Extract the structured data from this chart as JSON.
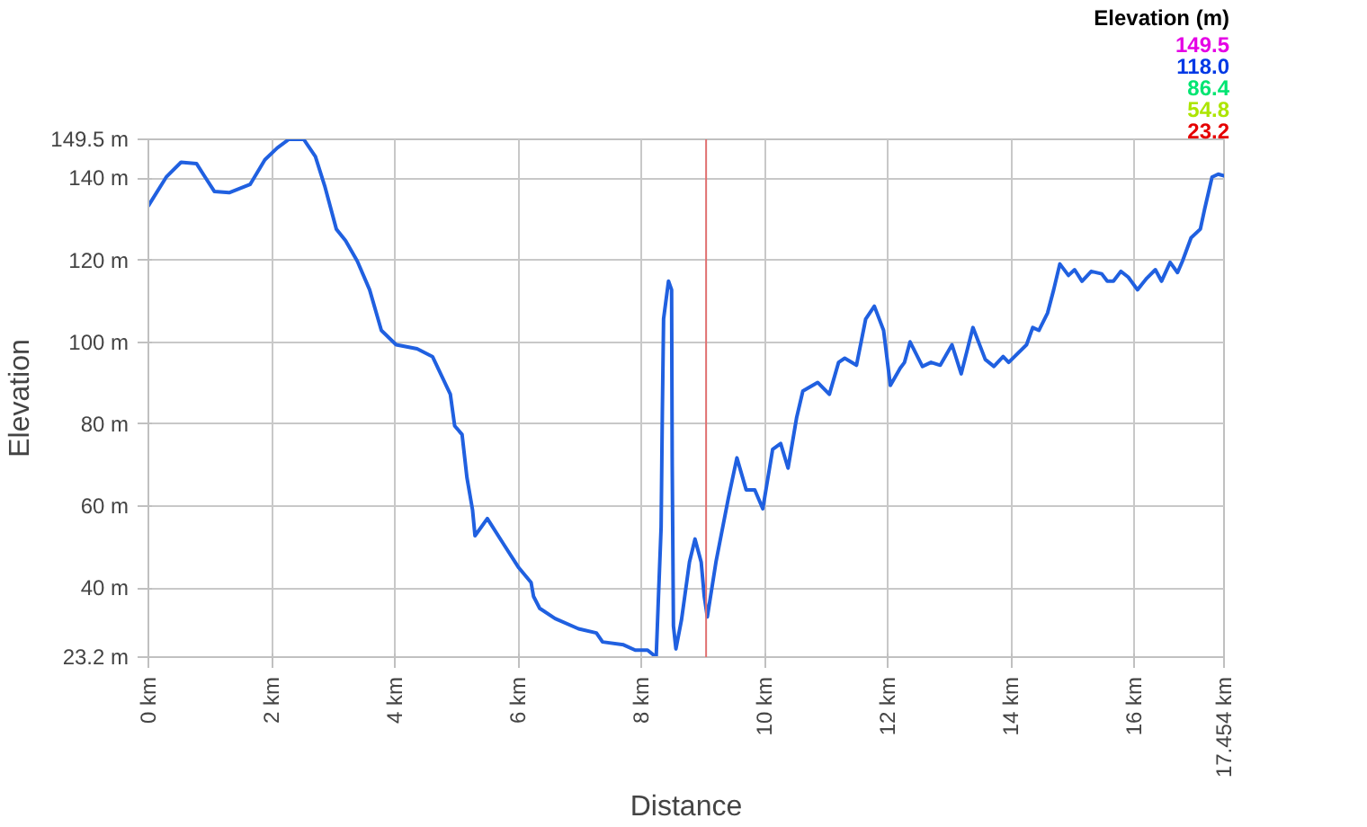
{
  "chart_data": {
    "type": "line",
    "xlabel": "Distance",
    "ylabel": "Elevation",
    "legend_title": "Elevation (m)",
    "annotations": [
      "149.5",
      "118.0",
      "86.4",
      "54.8",
      "23.2"
    ],
    "x": [
      0,
      0.29,
      0.53,
      0.78,
      0.92,
      1.07,
      1.31,
      1.65,
      1.89,
      2.09,
      2.28,
      2.52,
      2.71,
      2.86,
      3.05,
      3.2,
      3.39,
      3.59,
      3.78,
      4.02,
      4.36,
      4.61,
      4.9,
      4.97,
      5.09,
      5.17,
      5.26,
      5.3,
      5.5,
      5.77,
      6.01,
      6.21,
      6.25,
      6.35,
      6.6,
      6.98,
      7.27,
      7.37,
      7.71,
      7.9,
      8.1,
      8.24,
      8.27,
      8.32,
      8.34,
      8.36,
      8.44,
      8.49,
      8.5,
      8.52,
      8.56,
      8.65,
      8.78,
      8.87,
      8.97,
      9.02,
      9.07,
      9.21,
      9.41,
      9.55,
      9.7,
      9.84,
      9.97,
      10.13,
      10.26,
      10.38,
      10.52,
      10.62,
      10.86,
      11.05,
      11.2,
      11.3,
      11.49,
      11.64,
      11.78,
      11.93,
      12.04,
      12.2,
      12.27,
      12.36,
      12.56,
      12.7,
      12.85,
      13.04,
      13.19,
      13.38,
      13.58,
      13.72,
      13.87,
      13.96,
      14.25,
      14.35,
      14.45,
      14.59,
      14.69,
      14.79,
      14.93,
      15.03,
      15.15,
      15.3,
      15.47,
      15.56,
      15.66,
      15.78,
      15.9,
      16.05,
      16.2,
      16.34,
      16.44,
      16.58,
      16.7,
      16.78,
      16.92,
      17.07,
      17.14,
      17.26,
      17.36,
      17.454
    ],
    "color": "#2060e0",
    "values": [
      133.3,
      140.3,
      143.9,
      143.6,
      140.3,
      136.8,
      136.5,
      138.5,
      144.5,
      147.4,
      149.5,
      149.5,
      145.3,
      138.2,
      127.6,
      124.8,
      119.8,
      112.8,
      102.9,
      99.4,
      98.4,
      96.5,
      87.3,
      79.6,
      77.5,
      66.9,
      59.1,
      52.8,
      57.0,
      50.6,
      45.0,
      41.4,
      38.0,
      35.1,
      32.6,
      30.1,
      29.1,
      26.9,
      26.2,
      24.9,
      24.9,
      23.2,
      35.1,
      54.9,
      83.1,
      105.7,
      114.9,
      112.8,
      70.4,
      30.8,
      25.2,
      32.2,
      46.4,
      52.0,
      46.4,
      38.0,
      33.0,
      46.4,
      61.9,
      71.8,
      64.0,
      64.0,
      59.4,
      73.9,
      75.3,
      69.3,
      81.7,
      88.1,
      90.2,
      87.3,
      95.1,
      96.1,
      94.4,
      105.7,
      108.8,
      102.9,
      89.5,
      93.7,
      95.1,
      100.1,
      94.1,
      95.1,
      94.4,
      99.4,
      92.3,
      103.6,
      95.8,
      94.1,
      96.5,
      95.1,
      99.4,
      103.6,
      102.9,
      107.1,
      112.8,
      119.1,
      116.3,
      117.7,
      114.9,
      117.3,
      116.7,
      114.9,
      114.9,
      117.3,
      115.9,
      112.8,
      115.6,
      117.7,
      114.9,
      119.5,
      117.0,
      119.8,
      125.5,
      127.6,
      132.5,
      140.3,
      141.0,
      140.6
    ],
    "xlim": [
      0,
      17.454
    ],
    "ylim": [
      23.2,
      149.5
    ],
    "xticks": [
      {
        "value": 0,
        "label": "0 km"
      },
      {
        "value": 2,
        "label": "2 km"
      },
      {
        "value": 4,
        "label": "4 km"
      },
      {
        "value": 6,
        "label": "6 km"
      },
      {
        "value": 8,
        "label": "8 km"
      },
      {
        "value": 10,
        "label": "10 km"
      },
      {
        "value": 12,
        "label": "12 km"
      },
      {
        "value": 14,
        "label": "14 km"
      },
      {
        "value": 16,
        "label": "16 km"
      },
      {
        "value": 17.454,
        "label": "17.454 km"
      }
    ],
    "yticks": [
      {
        "value": 23.2,
        "label": "23.2 m"
      },
      {
        "value": 40,
        "label": "40 m"
      },
      {
        "value": 60,
        "label": "60 m"
      },
      {
        "value": 80,
        "label": "80 m"
      },
      {
        "value": 100,
        "label": "100 m"
      },
      {
        "value": 120,
        "label": "120 m"
      },
      {
        "value": 140,
        "label": "140 m"
      },
      {
        "value": 149.5,
        "label": "149.5 m"
      }
    ],
    "ref_lines": [
      {
        "axis": "x",
        "value": 9.05,
        "color": "#e07070"
      }
    ],
    "grid": true
  }
}
